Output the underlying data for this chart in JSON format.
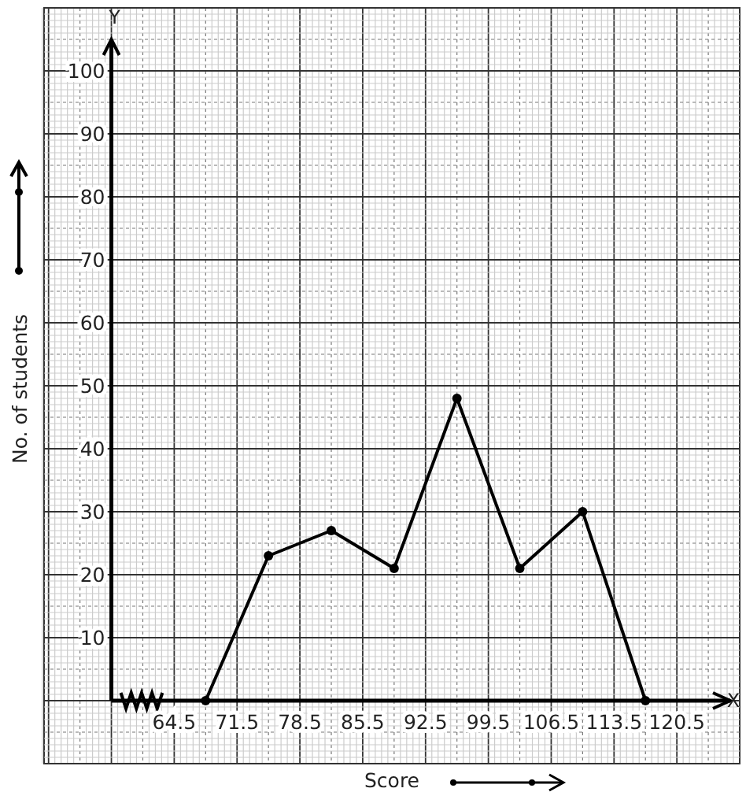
{
  "chart_data": {
    "type": "line",
    "xlabel": "Score",
    "ylabel": "No. of students",
    "annotations": [
      "Y",
      "X"
    ],
    "x": [
      68,
      75,
      82,
      89,
      96,
      103,
      110,
      117
    ],
    "series": [
      {
        "color": "#000000",
        "values": [
          0,
          23,
          27,
          21,
          48,
          21,
          30,
          0
        ]
      }
    ],
    "xlim": [
      50,
      127.5
    ],
    "ylim": [
      -10,
      110
    ],
    "xticks": [
      64.5,
      71.5,
      78.5,
      85.5,
      92.5,
      99.5,
      106.5,
      113.5,
      120.5
    ],
    "yticks": [
      10,
      20,
      30,
      40,
      50,
      60,
      70,
      80,
      90,
      100
    ],
    "grid": true,
    "marker": "circle",
    "line_style": "solid"
  }
}
